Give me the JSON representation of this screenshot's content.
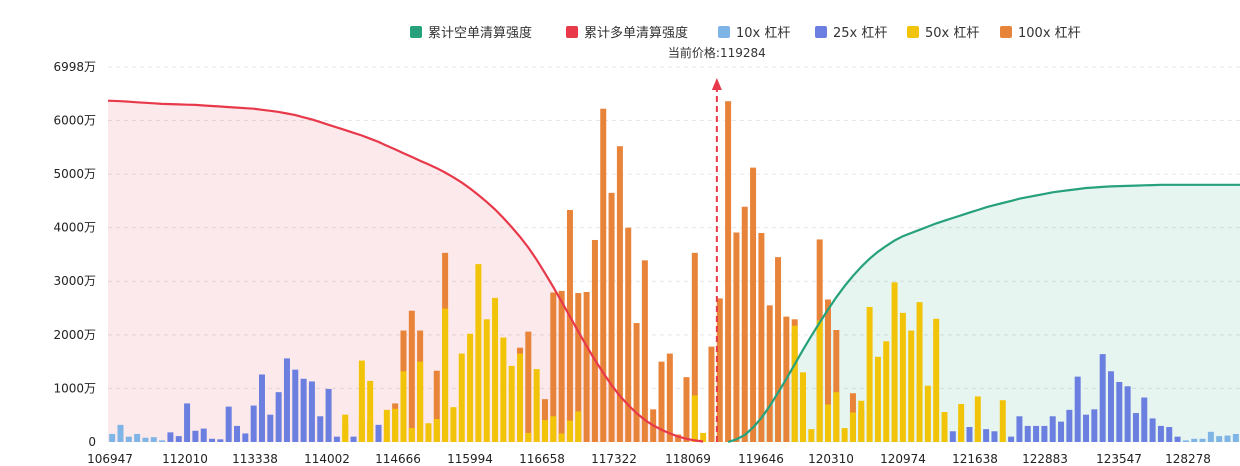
{
  "chart_data": {
    "type": "bar",
    "price_label": "当前价格:119284",
    "current_price": 119284,
    "legend": [
      {
        "key": "short_cum",
        "label": "累计空单清算强度",
        "color": "#26A17B"
      },
      {
        "key": "long_cum",
        "label": "累计多单清算强度",
        "color": "#E8394B"
      },
      {
        "key": "lev10",
        "label": "10x 杠杆",
        "color": "#7FB5E6"
      },
      {
        "key": "lev25",
        "label": "25x 杠杆",
        "color": "#6B7FE0"
      },
      {
        "key": "lev50",
        "label": "50x 杠杆",
        "color": "#F2C409"
      },
      {
        "key": "lev100",
        "label": "100x 杠杆",
        "color": "#E8833A"
      }
    ],
    "y_ticks": [
      {
        "value": 0,
        "label": "0"
      },
      {
        "value": 1000,
        "label": "1000万"
      },
      {
        "value": 2000,
        "label": "2000万"
      },
      {
        "value": 3000,
        "label": "3000万"
      },
      {
        "value": 4000,
        "label": "4000万"
      },
      {
        "value": 5000,
        "label": "5000万"
      },
      {
        "value": 6000,
        "label": "6000万"
      },
      {
        "value": 6998,
        "label": "6998万"
      }
    ],
    "ylim": [
      0,
      6998
    ],
    "x_ticks": [
      {
        "value": 106947,
        "label": "106947"
      },
      {
        "value": 112010,
        "label": "112010"
      },
      {
        "value": 113338,
        "label": "113338"
      },
      {
        "value": 114002,
        "label": "114002"
      },
      {
        "value": 114666,
        "label": "114666"
      },
      {
        "value": 115994,
        "label": "115994"
      },
      {
        "value": 116658,
        "label": "116658"
      },
      {
        "value": 117322,
        "label": "117322"
      },
      {
        "value": 118069,
        "label": "118069"
      },
      {
        "value": 119646,
        "label": "119646"
      },
      {
        "value": 120310,
        "label": "120310"
      },
      {
        "value": 120974,
        "label": "120974"
      },
      {
        "value": 121638,
        "label": "121638"
      },
      {
        "value": 122883,
        "label": "122883"
      },
      {
        "value": 123547,
        "label": "123547"
      },
      {
        "value": 128278,
        "label": "128278"
      }
    ],
    "bars": [
      {
        "t": "lev10",
        "v": 150
      },
      {
        "t": "lev10",
        "v": 320
      },
      {
        "t": "lev10",
        "v": 100
      },
      {
        "t": "lev10",
        "v": 150
      },
      {
        "t": "lev10",
        "v": 80
      },
      {
        "t": "lev10",
        "v": 90
      },
      {
        "t": "lev10",
        "v": 30
      },
      {
        "t": "lev25",
        "v": 180
      },
      {
        "t": "lev25",
        "v": 110
      },
      {
        "t": "lev25",
        "v": 720
      },
      {
        "t": "lev25",
        "v": 210
      },
      {
        "t": "lev25",
        "v": 250
      },
      {
        "t": "lev25",
        "v": 60
      },
      {
        "t": "lev25",
        "v": 50
      },
      {
        "t": "lev25",
        "v": 660
      },
      {
        "t": "lev25",
        "v": 300
      },
      {
        "t": "lev25",
        "v": 160
      },
      {
        "t": "lev25",
        "v": 680
      },
      {
        "t": "lev25",
        "v": 1260
      },
      {
        "t": "lev25",
        "v": 510
      },
      {
        "t": "lev25",
        "v": 930
      },
      {
        "t": "lev25",
        "v": 1560
      },
      {
        "t": "lev25",
        "v": 1350
      },
      {
        "t": "lev25",
        "v": 1180
      },
      {
        "t": "lev25",
        "v": 1130
      },
      {
        "t": "lev25",
        "v": 480
      },
      {
        "t": "lev25",
        "v": 990
      },
      {
        "t": "lev25",
        "v": 100
      },
      {
        "t": "lev50",
        "v": 510,
        "b": 370
      },
      {
        "t": "lev25",
        "v": 100
      },
      {
        "t": "lev50",
        "v": 1520,
        "b": 440
      },
      {
        "t": "lev50",
        "v": 1140,
        "b": 390
      },
      {
        "t": "lev25",
        "v": 320
      },
      {
        "t": "lev50",
        "v": 600,
        "b": 80
      },
      {
        "t": "lev100",
        "v": 720,
        "b": 620
      },
      {
        "t": "lev100",
        "v": 2080,
        "b": 1320
      },
      {
        "t": "lev100",
        "v": 2450,
        "b": 260
      },
      {
        "t": "lev100",
        "v": 2080,
        "b": 1500
      },
      {
        "t": "lev50",
        "v": 350
      },
      {
        "t": "lev100",
        "v": 1330,
        "b": 430
      },
      {
        "t": "lev100",
        "v": 3530,
        "b": 2490
      },
      {
        "t": "lev50",
        "v": 650
      },
      {
        "t": "lev50",
        "v": 1650
      },
      {
        "t": "lev50",
        "v": 2020
      },
      {
        "t": "lev50",
        "v": 3320
      },
      {
        "t": "lev50",
        "v": 2290
      },
      {
        "t": "lev50",
        "v": 2690
      },
      {
        "t": "lev50",
        "v": 1950
      },
      {
        "t": "lev50",
        "v": 1420
      },
      {
        "t": "lev100",
        "v": 1760,
        "b": 1650
      },
      {
        "t": "lev100",
        "v": 2060,
        "b": 170
      },
      {
        "t": "lev50",
        "v": 1360
      },
      {
        "t": "lev100",
        "v": 800,
        "b": 410
      },
      {
        "t": "lev100",
        "v": 2790,
        "b": 480
      },
      {
        "t": "lev100",
        "v": 2820,
        "b": 160
      },
      {
        "t": "lev100",
        "v": 4330,
        "b": 400
      },
      {
        "t": "lev100",
        "v": 2780,
        "b": 570
      },
      {
        "t": "lev100",
        "v": 2800
      },
      {
        "t": "lev100",
        "v": 3770
      },
      {
        "t": "lev100",
        "v": 6220
      },
      {
        "t": "lev100",
        "v": 4650
      },
      {
        "t": "lev100",
        "v": 5520
      },
      {
        "t": "lev100",
        "v": 4000
      },
      {
        "t": "lev100",
        "v": 2220
      },
      {
        "t": "lev100",
        "v": 3390
      },
      {
        "t": "lev100",
        "v": 610
      },
      {
        "t": "lev100",
        "v": 1500
      },
      {
        "t": "lev100",
        "v": 1650
      },
      {
        "t": "lev100",
        "v": 140
      },
      {
        "t": "lev100",
        "v": 1210
      },
      {
        "t": "lev100",
        "v": 3530,
        "b": 870
      },
      {
        "t": "lev50",
        "v": 170
      },
      {
        "t": "lev100",
        "v": 1780
      },
      {
        "t": "lev100",
        "v": 2680
      },
      {
        "t": "lev100",
        "v": 6360
      },
      {
        "t": "lev100",
        "v": 3910
      },
      {
        "t": "lev100",
        "v": 4390
      },
      {
        "t": "lev100",
        "v": 5120
      },
      {
        "t": "lev100",
        "v": 3900
      },
      {
        "t": "lev100",
        "v": 2550
      },
      {
        "t": "lev100",
        "v": 3450
      },
      {
        "t": "lev100",
        "v": 2340
      },
      {
        "t": "lev100",
        "v": 2290,
        "b": 2170
      },
      {
        "t": "lev50",
        "v": 1300
      },
      {
        "t": "lev50",
        "v": 240
      },
      {
        "t": "lev100",
        "v": 3780,
        "b": 2270
      },
      {
        "t": "lev100",
        "v": 2660,
        "b": 700
      },
      {
        "t": "lev100",
        "v": 2090,
        "b": 930
      },
      {
        "t": "lev50",
        "v": 260
      },
      {
        "t": "lev100",
        "v": 910,
        "b": 550
      },
      {
        "t": "lev100",
        "v": 600,
        "b": 770
      },
      {
        "t": "lev50",
        "v": 2520
      },
      {
        "t": "lev50",
        "v": 1590
      },
      {
        "t": "lev50",
        "v": 1880
      },
      {
        "t": "lev50",
        "v": 2980
      },
      {
        "t": "lev50",
        "v": 2410
      },
      {
        "t": "lev50",
        "v": 2080
      },
      {
        "t": "lev50",
        "v": 2610
      },
      {
        "t": "lev50",
        "v": 1050
      },
      {
        "t": "lev50",
        "v": 2300
      },
      {
        "t": "lev50",
        "v": 560,
        "b": 100
      },
      {
        "t": "lev25",
        "v": 200
      },
      {
        "t": "lev50",
        "v": 710,
        "b": 260
      },
      {
        "t": "lev25",
        "v": 280
      },
      {
        "t": "lev50",
        "v": 850,
        "b": 240
      },
      {
        "t": "lev25",
        "v": 240
      },
      {
        "t": "lev25",
        "v": 200
      },
      {
        "t": "lev50",
        "v": 780,
        "b": 70
      },
      {
        "t": "lev25",
        "v": 100
      },
      {
        "t": "lev25",
        "v": 480
      },
      {
        "t": "lev25",
        "v": 300
      },
      {
        "t": "lev25",
        "v": 300
      },
      {
        "t": "lev25",
        "v": 300
      },
      {
        "t": "lev25",
        "v": 480
      },
      {
        "t": "lev25",
        "v": 380
      },
      {
        "t": "lev25",
        "v": 600
      },
      {
        "t": "lev25",
        "v": 1220
      },
      {
        "t": "lev25",
        "v": 510
      },
      {
        "t": "lev25",
        "v": 610
      },
      {
        "t": "lev25",
        "v": 1640
      },
      {
        "t": "lev25",
        "v": 1320
      },
      {
        "t": "lev25",
        "v": 1120
      },
      {
        "t": "lev25",
        "v": 1040
      },
      {
        "t": "lev25",
        "v": 540
      },
      {
        "t": "lev25",
        "v": 830
      },
      {
        "t": "lev25",
        "v": 440
      },
      {
        "t": "lev25",
        "v": 300
      },
      {
        "t": "lev25",
        "v": 280
      },
      {
        "t": "lev25",
        "v": 100
      },
      {
        "t": "lev10",
        "v": 30
      },
      {
        "t": "lev10",
        "v": 60
      },
      {
        "t": "lev10",
        "v": 60
      },
      {
        "t": "lev10",
        "v": 190
      },
      {
        "t": "lev10",
        "v": 110
      },
      {
        "t": "lev10",
        "v": 120
      },
      {
        "t": "lev10",
        "v": 150
      }
    ],
    "long_cum": [
      6370,
      6360,
      6350,
      6340,
      6330,
      6320,
      6310,
      6305,
      6300,
      6295,
      6290,
      6280,
      6270,
      6260,
      6250,
      6240,
      6230,
      6220,
      6200,
      6180,
      6160,
      6130,
      6100,
      6060,
      6020,
      5970,
      5920,
      5870,
      5820,
      5770,
      5720,
      5660,
      5600,
      5530,
      5460,
      5390,
      5320,
      5250,
      5180,
      5110,
      5030,
      4940,
      4840,
      4730,
      4610,
      4480,
      4340,
      4180,
      4010,
      3830,
      3630,
      3400,
      3150,
      2890,
      2620,
      2340,
      2060,
      1790,
      1530,
      1290,
      1060,
      860,
      690,
      540,
      410,
      310,
      230,
      160,
      100,
      60,
      30,
      10
    ],
    "short_cum": [
      0,
      50,
      130,
      270,
      450,
      670,
      920,
      1180,
      1450,
      1720,
      1980,
      2230,
      2470,
      2700,
      2910,
      3100,
      3270,
      3420,
      3550,
      3660,
      3760,
      3840,
      3900,
      3960,
      4020,
      4080,
      4130,
      4180,
      4230,
      4280,
      4330,
      4380,
      4420,
      4460,
      4500,
      4540,
      4570,
      4600,
      4630,
      4660,
      4680,
      4700,
      4720,
      4740,
      4750,
      4760,
      4770,
      4775,
      4780,
      4785,
      4790,
      4795,
      4800,
      4800
    ],
    "long_cum_start_bar": 0,
    "short_cum_start_bar": 74,
    "price_line_after_bar": 72
  }
}
